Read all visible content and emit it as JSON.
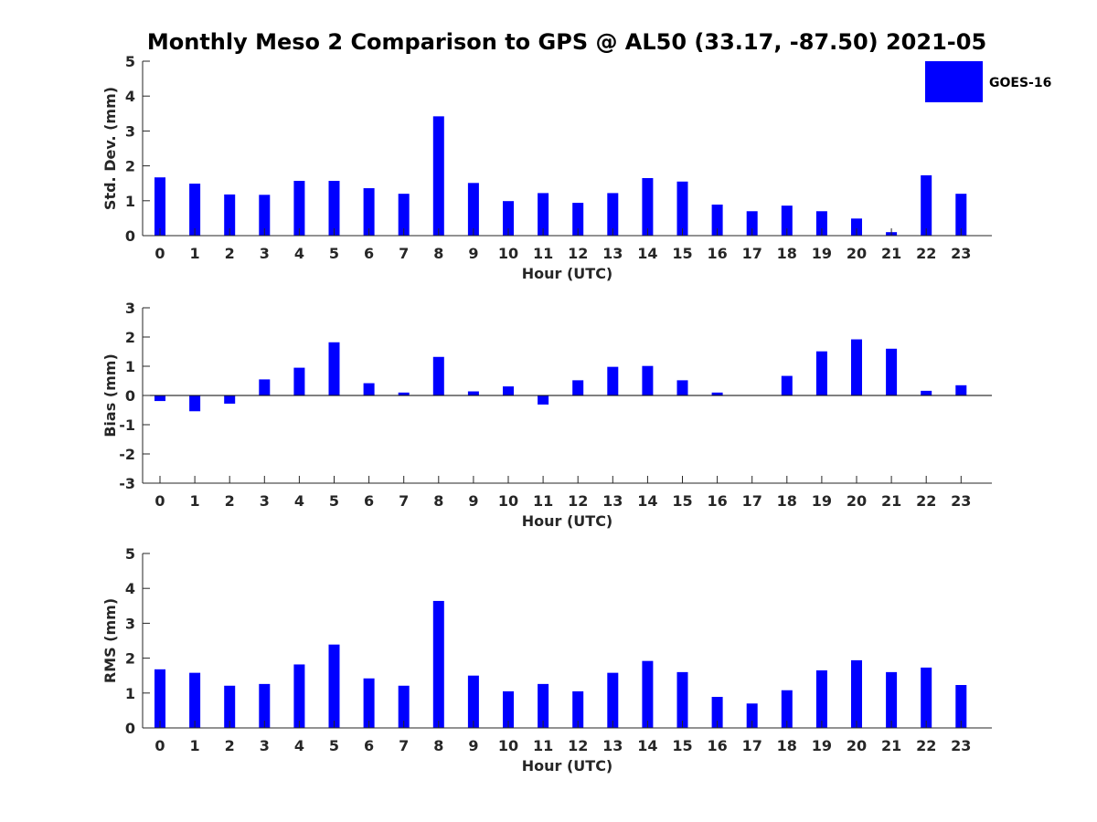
{
  "figure": {
    "title": "Monthly Meso 2 Comparison to GPS @ AL50 (33.17, -87.50) 2021-05"
  },
  "legend": {
    "label": "GOES-16",
    "color": "#0000ff",
    "placement": "top-right"
  },
  "chart_data": [
    {
      "type": "bar",
      "xlabel": "Hour (UTC)",
      "ylabel": "Std. Dev. (mm)",
      "ylim": [
        0,
        5
      ],
      "yticks": [
        0,
        1,
        2,
        3,
        4,
        5
      ],
      "categories": [
        "0",
        "1",
        "2",
        "3",
        "4",
        "5",
        "6",
        "7",
        "8",
        "9",
        "10",
        "11",
        "12",
        "13",
        "14",
        "15",
        "16",
        "17",
        "18",
        "19",
        "20",
        "21",
        "22",
        "23"
      ],
      "series": [
        {
          "name": "GOES-16",
          "values": [
            1.67,
            1.49,
            1.18,
            1.17,
            1.57,
            1.57,
            1.36,
            1.2,
            3.42,
            1.51,
            0.99,
            1.22,
            0.94,
            1.22,
            1.65,
            1.55,
            0.89,
            0.7,
            0.86,
            0.7,
            0.49,
            0.1,
            1.73,
            1.2
          ]
        }
      ],
      "grid": false
    },
    {
      "type": "bar",
      "xlabel": "Hour (UTC)",
      "ylabel": "Bias (mm)",
      "ylim": [
        -3,
        3
      ],
      "yticks": [
        -3,
        -2,
        -1,
        0,
        1,
        2,
        3
      ],
      "categories": [
        "0",
        "1",
        "2",
        "3",
        "4",
        "5",
        "6",
        "7",
        "8",
        "9",
        "10",
        "11",
        "12",
        "13",
        "14",
        "15",
        "16",
        "17",
        "18",
        "19",
        "20",
        "21",
        "22",
        "23"
      ],
      "series": [
        {
          "name": "GOES-16",
          "values": [
            -0.19,
            -0.54,
            -0.28,
            0.55,
            0.95,
            1.82,
            0.42,
            0.1,
            1.32,
            0.14,
            0.31,
            -0.31,
            0.52,
            0.98,
            1.01,
            0.52,
            0.1,
            0.0,
            0.67,
            1.51,
            1.92,
            1.6,
            0.16,
            0.35
          ]
        }
      ],
      "grid": false
    },
    {
      "type": "bar",
      "xlabel": "Hour (UTC)",
      "ylabel": "RMS (mm)",
      "ylim": [
        0,
        5
      ],
      "yticks": [
        0,
        1,
        2,
        3,
        4,
        5
      ],
      "categories": [
        "0",
        "1",
        "2",
        "3",
        "4",
        "5",
        "6",
        "7",
        "8",
        "9",
        "10",
        "11",
        "12",
        "13",
        "14",
        "15",
        "16",
        "17",
        "18",
        "19",
        "20",
        "21",
        "22",
        "23"
      ],
      "series": [
        {
          "name": "GOES-16",
          "values": [
            1.68,
            1.58,
            1.21,
            1.26,
            1.82,
            2.39,
            1.42,
            1.21,
            3.64,
            1.5,
            1.05,
            1.26,
            1.05,
            1.58,
            1.92,
            1.6,
            0.89,
            0.7,
            1.08,
            1.65,
            1.94,
            1.6,
            1.73,
            1.23
          ]
        }
      ],
      "grid": false
    }
  ]
}
